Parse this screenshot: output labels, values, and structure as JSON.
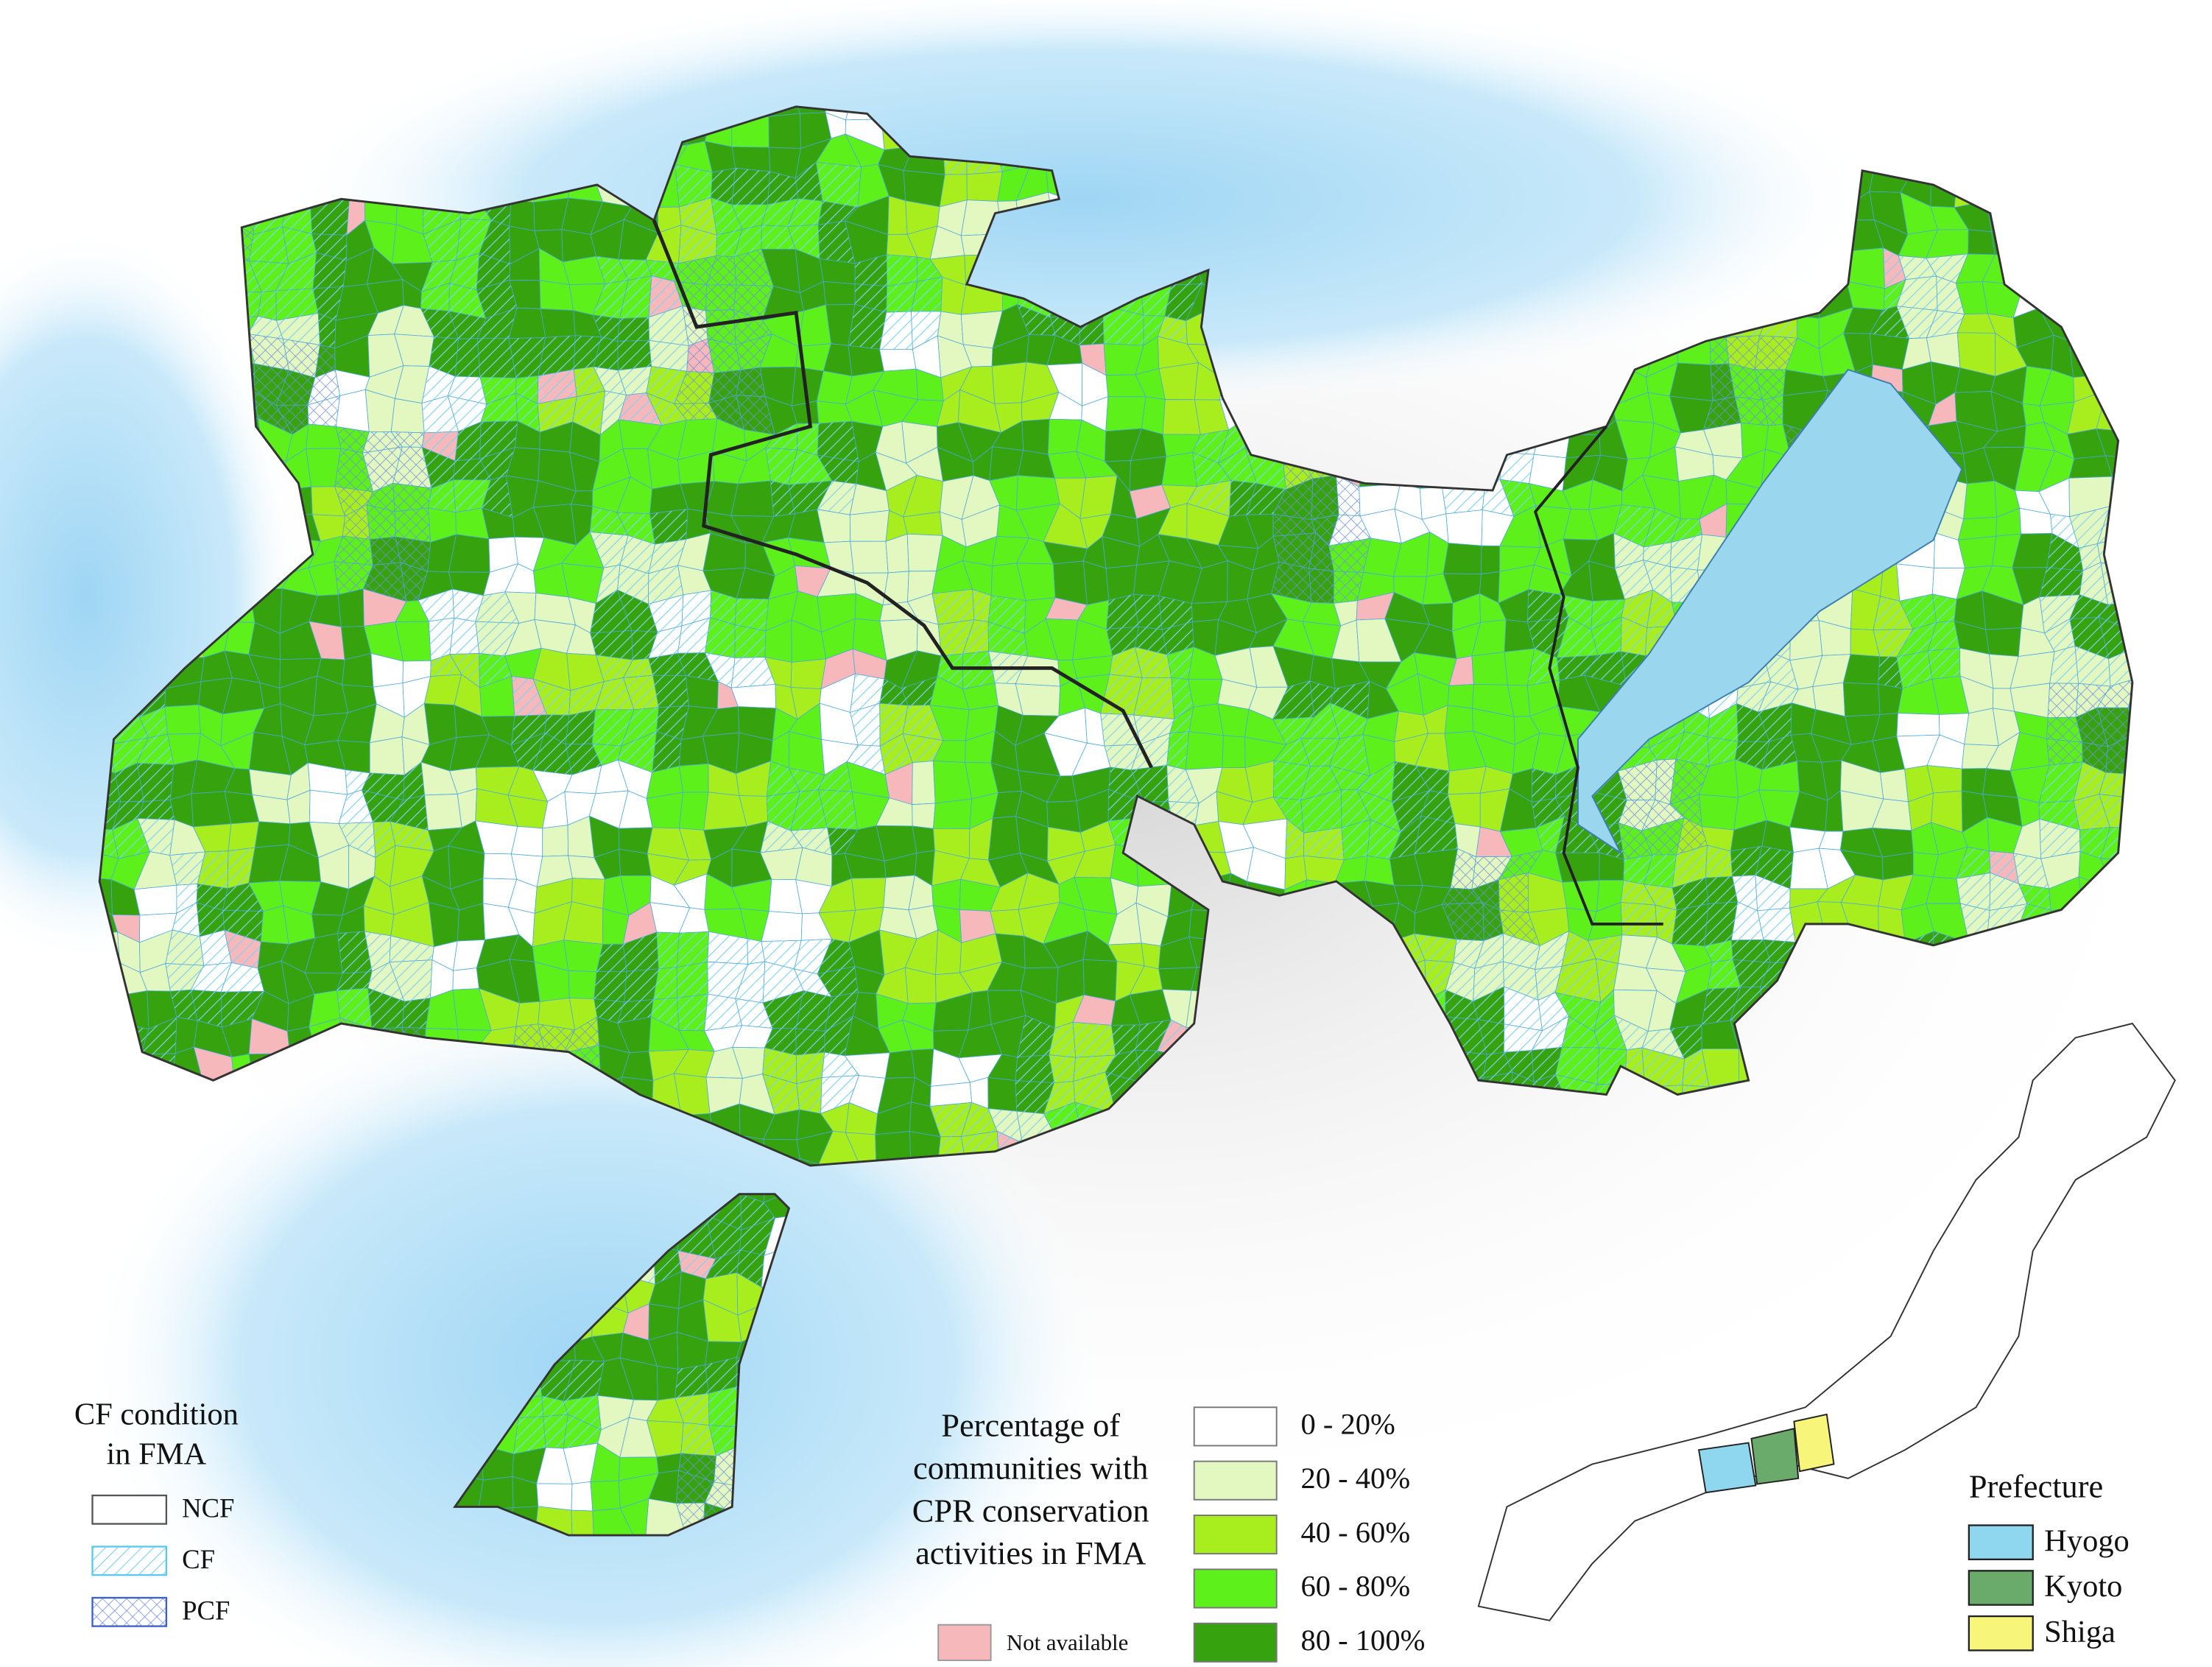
{
  "cf_legend": {
    "title_lines": [
      "CF condition",
      "in FMA"
    ],
    "items": [
      {
        "label": "NCF"
      },
      {
        "label": "CF"
      },
      {
        "label": "PCF"
      }
    ]
  },
  "percentage_legend": {
    "title_lines": [
      "Percentage of",
      "communities with",
      "CPR conservation",
      "activities in FMA"
    ],
    "items": [
      {
        "label": "0 - 20%",
        "color": "#ffffff"
      },
      {
        "label": "20 - 40%",
        "color": "#e3f7c0"
      },
      {
        "label": "40 - 60%",
        "color": "#a8ee1e"
      },
      {
        "label": "60 - 80%",
        "color": "#5ef01a"
      },
      {
        "label": "80 - 100%",
        "color": "#36a30e"
      }
    ],
    "not_available": {
      "label": "Not available",
      "color": "#f7b8bc"
    }
  },
  "prefecture_legend": {
    "title": "Prefecture",
    "items": [
      {
        "label": "Hyogo",
        "color": "#8fd6ef"
      },
      {
        "label": "Kyoto",
        "color": "#6aaa6a"
      },
      {
        "label": "Shiga",
        "color": "#f7f57a"
      }
    ]
  }
}
